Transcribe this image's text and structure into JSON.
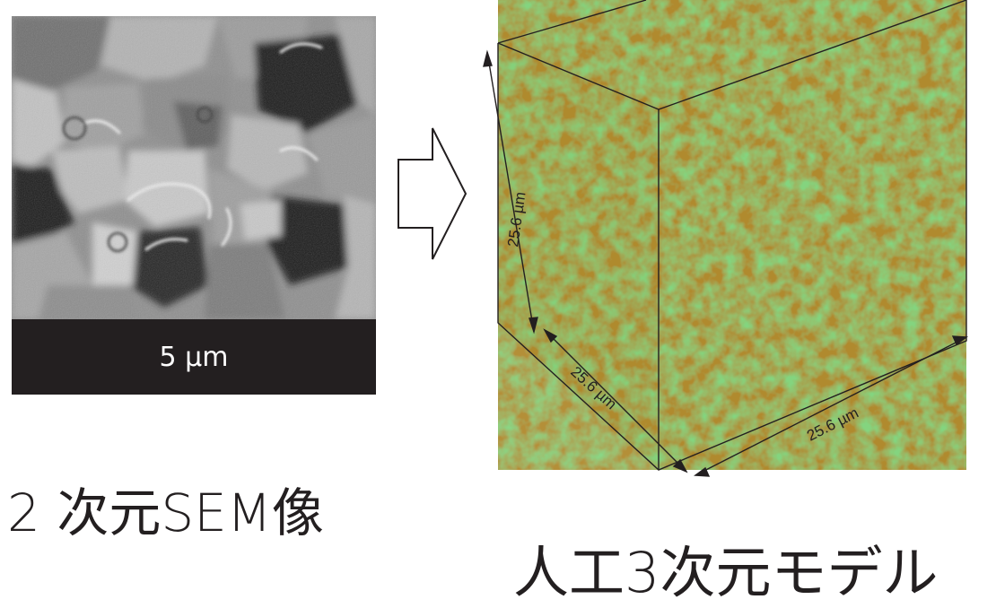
{
  "sem_panel": {
    "scale_bar_label": "5 µm",
    "caption": "2 次元SEM像"
  },
  "model_panel": {
    "dimension_height": "25.6 µm",
    "dimension_depth": "25.6 µm",
    "dimension_width": "25.6 µm",
    "caption": "人工3次元モデル"
  },
  "colors": {
    "phase_green": "#3aa835",
    "phase_ochre": "#b08a2e",
    "phase_yellow": "#f2e43a",
    "scale_bar_bg": "#231f20"
  }
}
